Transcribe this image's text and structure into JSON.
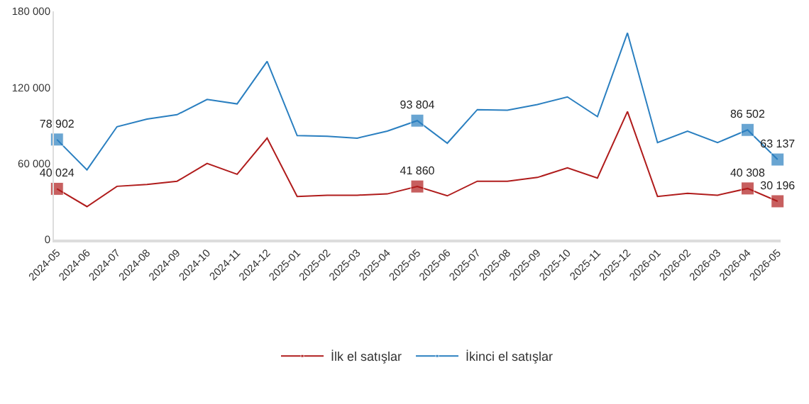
{
  "chart_data": {
    "type": "line",
    "categories": [
      "2024-05",
      "2024-06",
      "2024-07",
      "2024-08",
      "2024-09",
      "2024-10",
      "2024-11",
      "2024-12",
      "2025-01",
      "2025-02",
      "2025-03",
      "2025-04",
      "2025-05",
      "2025-06",
      "2025-07",
      "2025-08",
      "2025-09",
      "2025-10",
      "2025-11",
      "2025-12",
      "2026-01",
      "2026-02",
      "2026-03",
      "2026-04",
      "2026-05"
    ],
    "series": [
      {
        "name": "İlk el satışlar",
        "color": "#b01c1c",
        "values": [
          40024,
          26000,
          42000,
          43500,
          46000,
          60000,
          51500,
          80000,
          34000,
          35000,
          35000,
          36000,
          41860,
          34500,
          46000,
          46000,
          49000,
          56500,
          48500,
          101000,
          34000,
          36500,
          35000,
          40308,
          30196
        ],
        "value_labels": [
          "40 024",
          null,
          null,
          null,
          null,
          null,
          null,
          null,
          null,
          null,
          null,
          null,
          "41 860",
          null,
          null,
          null,
          null,
          null,
          null,
          null,
          null,
          null,
          null,
          "40 308",
          "30 196"
        ]
      },
      {
        "name": "İkinci el satışlar",
        "color": "#2a7fc0",
        "values": [
          78902,
          55000,
          89000,
          95000,
          98500,
          110500,
          107000,
          140500,
          82000,
          81500,
          80000,
          85500,
          93804,
          76000,
          102500,
          102000,
          106500,
          112500,
          97000,
          163000,
          76500,
          85500,
          76500,
          86502,
          63137
        ],
        "value_labels": [
          "78 902",
          null,
          null,
          null,
          null,
          null,
          null,
          null,
          null,
          null,
          null,
          null,
          "93 804",
          null,
          null,
          null,
          null,
          null,
          null,
          null,
          null,
          null,
          null,
          "86 502",
          "63 137"
        ]
      }
    ],
    "ylim": [
      0,
      180000
    ],
    "yticks": [
      {
        "value": 0,
        "label": "0"
      },
      {
        "value": 60000,
        "label": "60 000"
      },
      {
        "value": 120000,
        "label": "120 000"
      },
      {
        "value": 180000,
        "label": "180 000"
      }
    ],
    "grid": false,
    "legend": "bottom",
    "line_style": "solid"
  }
}
